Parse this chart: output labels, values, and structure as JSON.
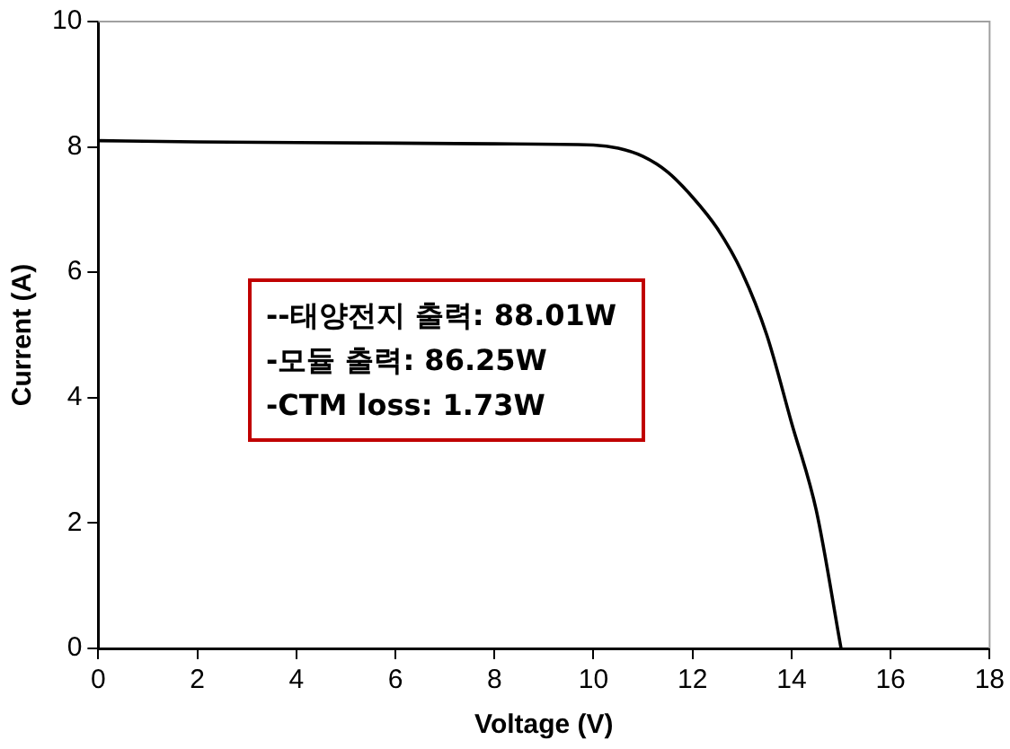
{
  "chart_data": {
    "type": "line",
    "xlabel": "Voltage (V)",
    "ylabel": "Current (A)",
    "x": [
      0,
      2,
      4,
      6,
      8,
      10,
      10.5,
      11,
      11.5,
      12,
      12.5,
      13,
      13.5,
      14,
      14.5,
      15
    ],
    "series": [
      {
        "color": "#000000",
        "values": [
          8.1,
          8.08,
          8.07,
          8.06,
          8.05,
          8.03,
          7.98,
          7.85,
          7.6,
          7.2,
          6.7,
          6.0,
          5.0,
          3.6,
          2.2,
          0
        ]
      }
    ],
    "xlim": [
      0,
      18
    ],
    "xticks": [
      0,
      2,
      4,
      6,
      8,
      10,
      12,
      14,
      16,
      18
    ],
    "ylim": [
      0,
      10
    ],
    "yticks": [
      0,
      2,
      4,
      6,
      8,
      10
    ],
    "grid": false,
    "legend": false,
    "marker": "none",
    "line_style": "solid",
    "annotations": [
      "--태양전지 출력: 88.01W",
      "-모듈 출력: 86.25W",
      "-CTM loss: 1.73W"
    ]
  }
}
